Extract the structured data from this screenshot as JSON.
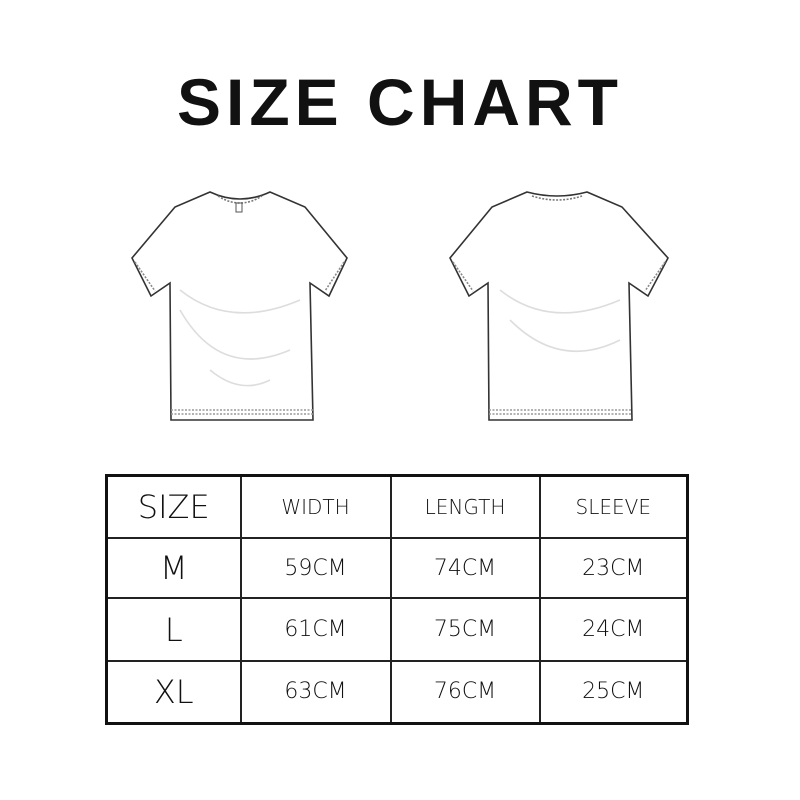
{
  "title": "SIZE CHART",
  "illustrations": [
    "t-shirt-front",
    "t-shirt-back"
  ],
  "table": {
    "headers": [
      "SIZE",
      "WIDTH",
      "LENGTH",
      "SLEEVE"
    ],
    "rows": [
      [
        "M",
        "59CM",
        "74CM",
        "23CM"
      ],
      [
        "L",
        "61CM",
        "75CM",
        "24CM"
      ],
      [
        "XL",
        "63CM",
        "76CM",
        "25CM"
      ]
    ]
  }
}
